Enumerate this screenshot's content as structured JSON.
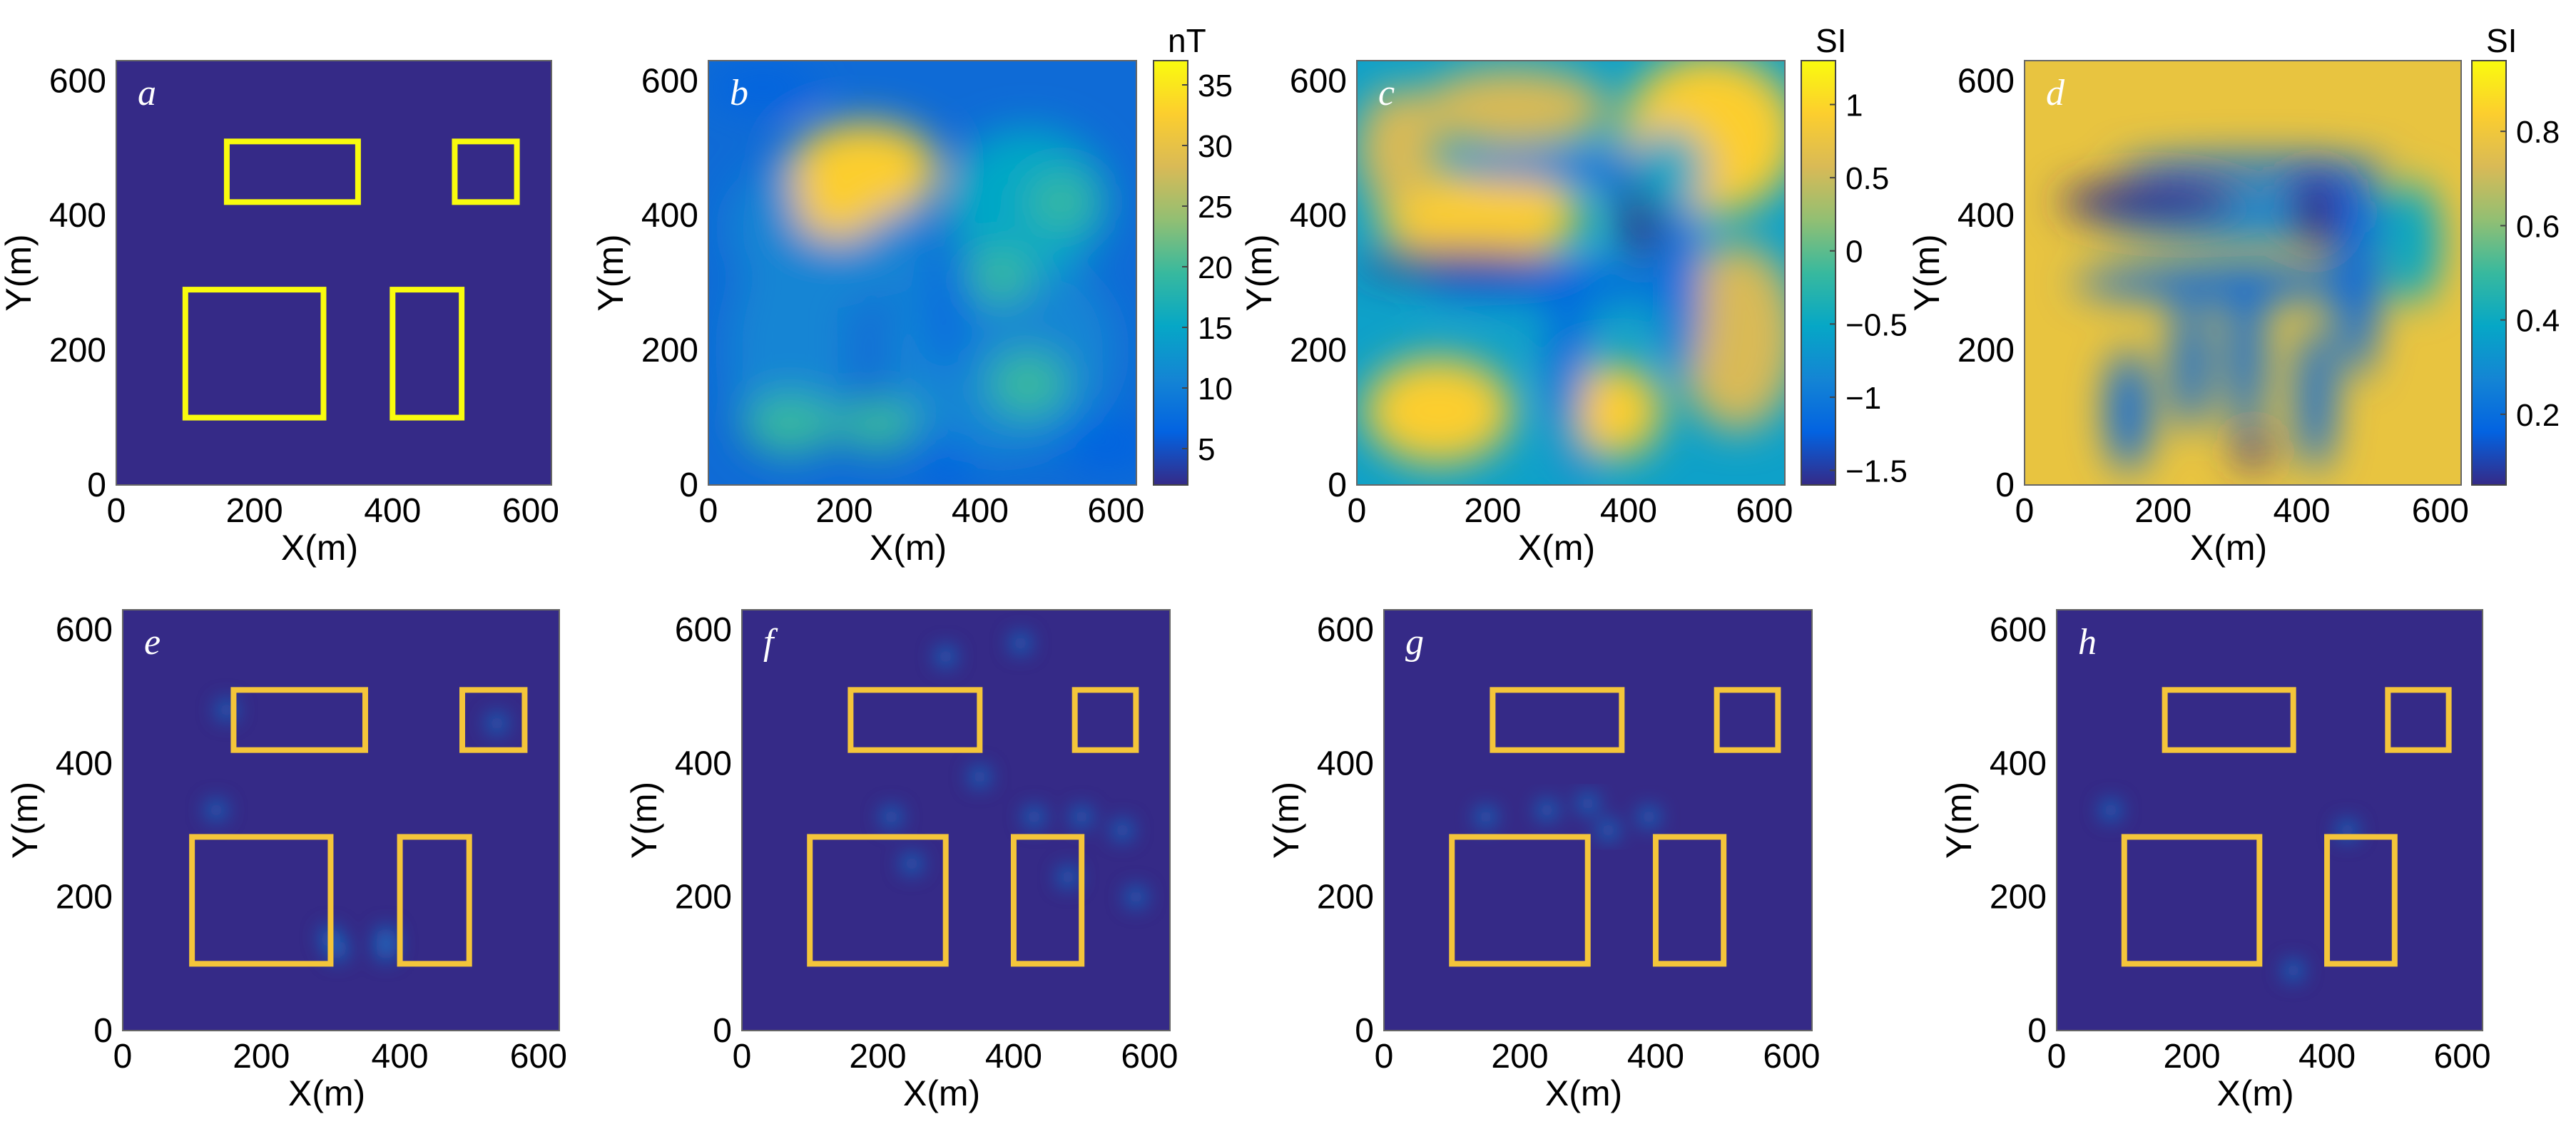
{
  "figure": {
    "panels": [
      {
        "id": "a",
        "label": "a",
        "colorbar": null
      },
      {
        "id": "b",
        "label": "b",
        "colorbar": {
          "unit": "nT",
          "ticks": [
            "35",
            "30",
            "25",
            "20",
            "15",
            "10",
            "5"
          ],
          "colormap": "parula"
        }
      },
      {
        "id": "c",
        "label": "c",
        "colorbar": {
          "unit": "SI",
          "ticks": [
            "1",
            "0.5",
            "0",
            "−0.5",
            "−1",
            "−1.5"
          ],
          "colormap": "parula"
        }
      },
      {
        "id": "d",
        "label": "d",
        "colorbar": {
          "unit": "SI",
          "ticks": [
            "0.8",
            "0.6",
            "0.4",
            "0.2"
          ],
          "colormap": "parula"
        }
      },
      {
        "id": "e",
        "label": "e",
        "colorbar": null
      },
      {
        "id": "f",
        "label": "f",
        "colorbar": null
      },
      {
        "id": "g",
        "label": "g",
        "colorbar": null
      },
      {
        "id": "h",
        "label": "h",
        "colorbar": null
      }
    ]
  },
  "chart_data": [
    {
      "type": "heatmap",
      "panel": "a",
      "xlabel": "X(m)",
      "ylabel": "Y(m)",
      "xlim": [
        0,
        630
      ],
      "ylim": [
        0,
        630
      ],
      "xticks": [
        "0",
        "200",
        "400",
        "600"
      ],
      "yticks": [
        "0",
        "200",
        "400",
        "600"
      ],
      "rectangles": [
        [
          160,
          420,
          350,
          510
        ],
        [
          490,
          420,
          580,
          510
        ],
        [
          100,
          100,
          300,
          290
        ],
        [
          400,
          100,
          500,
          290
        ]
      ],
      "background": "#352a87",
      "outline_color": "#f9fb0e"
    },
    {
      "type": "heatmap",
      "panel": "b",
      "xlabel": "X(m)",
      "ylabel": "Y(m)",
      "xlim": [
        0,
        630
      ],
      "ylim": [
        0,
        630
      ],
      "xticks": [
        "0",
        "200",
        "400",
        "600"
      ],
      "yticks": [
        "0",
        "200",
        "400",
        "600"
      ],
      "zlim": [
        2,
        37
      ],
      "zunit": "nT"
    },
    {
      "type": "heatmap",
      "panel": "c",
      "xlabel": "X(m)",
      "ylabel": "Y(m)",
      "xlim": [
        0,
        630
      ],
      "ylim": [
        0,
        630
      ],
      "xticks": [
        "0",
        "200",
        "400",
        "600"
      ],
      "yticks": [
        "0",
        "200",
        "400",
        "600"
      ],
      "zlim": [
        -1.6,
        1.3
      ],
      "zunit": "SI"
    },
    {
      "type": "heatmap",
      "panel": "d",
      "xlabel": "X(m)",
      "ylabel": "Y(m)",
      "xlim": [
        0,
        630
      ],
      "ylim": [
        0,
        630
      ],
      "xticks": [
        "0",
        "200",
        "400",
        "600"
      ],
      "yticks": [
        "0",
        "200",
        "400",
        "600"
      ],
      "zlim": [
        0.05,
        0.95
      ],
      "zunit": "SI"
    },
    {
      "type": "heatmap",
      "panel": "e",
      "xlabel": "X(m)",
      "ylabel": "Y(m)",
      "xlim": [
        0,
        630
      ],
      "ylim": [
        0,
        630
      ],
      "xticks": [
        "0",
        "200",
        "400",
        "600"
      ],
      "yticks": [
        "0",
        "200",
        "400",
        "600"
      ]
    },
    {
      "type": "heatmap",
      "panel": "f",
      "xlabel": "X(m)",
      "ylabel": "Y(m)",
      "xlim": [
        0,
        630
      ],
      "ylim": [
        0,
        630
      ],
      "xticks": [
        "0",
        "200",
        "400",
        "600"
      ],
      "yticks": [
        "0",
        "200",
        "400",
        "600"
      ]
    },
    {
      "type": "heatmap",
      "panel": "g",
      "xlabel": "X(m)",
      "ylabel": "Y(m)",
      "xlim": [
        0,
        630
      ],
      "ylim": [
        0,
        630
      ],
      "xticks": [
        "0",
        "200",
        "400",
        "600"
      ],
      "yticks": [
        "0",
        "200",
        "400",
        "600"
      ]
    },
    {
      "type": "heatmap",
      "panel": "h",
      "xlabel": "X(m)",
      "ylabel": "Y(m)",
      "xlim": [
        0,
        630
      ],
      "ylim": [
        0,
        630
      ],
      "xticks": [
        "0",
        "200",
        "400",
        "600"
      ],
      "yticks": [
        "0",
        "200",
        "400",
        "600"
      ]
    }
  ]
}
